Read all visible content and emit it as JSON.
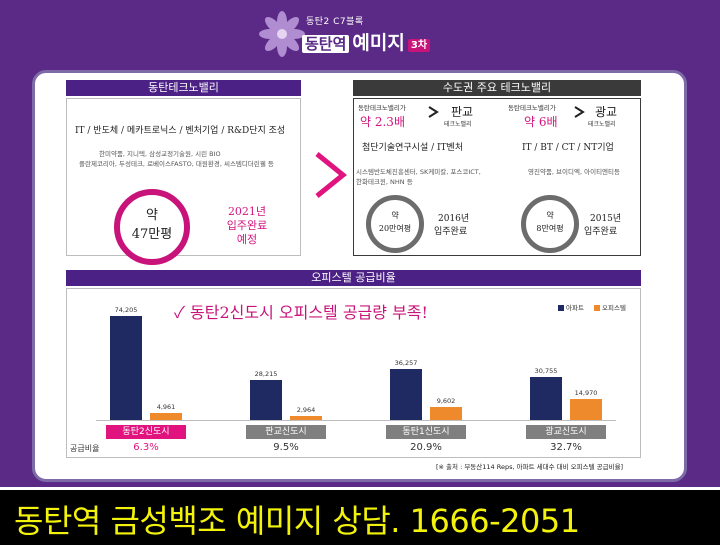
{
  "header": {
    "sub": "동탄2 C7블록",
    "station": "동탄역",
    "brand": "예미지",
    "phase": "3차"
  },
  "left": {
    "heading": "동탄테크노밸리",
    "industries": "IT / 반도체 / 메카트로닉스 / 벤처기업 / R&D단지 조성",
    "companies_line1": "한미약품, 지니텍, 삼성교정기술원, 시린 BIO",
    "companies_line2": "플란제코리아, 두성테크, 로베이스FASTO, 대원환경, 씨스템디더린웰 등",
    "ring_line1": "약",
    "ring_line2": "47만평",
    "completion_line1": "2021년",
    "completion_line2": "입주완료",
    "completion_line3": "예정"
  },
  "right": {
    "heading": "수도권 주요 테크노밸리",
    "pangyo": {
      "compare": "동탄테크노밸리가",
      "multiple": "약 2.3배",
      "name": "판교",
      "name_sub": "테크노밸리",
      "industries": "첨단기술연구시설 / IT벤처",
      "companies_line1": "시스템반도체진흥센터, SK케미칼, 포스코ICT,",
      "companies_line2": "한화테크윈, NHN 등",
      "ring_line1": "약",
      "ring_line2": "20만여평",
      "year": "2016년",
      "completed": "입주완료"
    },
    "gwanggyo": {
      "compare": "동탄테크노밸리가",
      "multiple": "약 6배",
      "name": "광교",
      "name_sub": "테크노밸리",
      "industries": "IT / BT / CT / NT기업",
      "companies": "영진약품, 브이디엑, 아이티엔티등",
      "ring_line1": "약",
      "ring_line2": "8만여평",
      "year": "2015년",
      "completed": "입주완료"
    }
  },
  "officetel": {
    "heading": "오피스텔 공급비율",
    "title": "✓ 동탄2신도시 오피스텔 공급량 부족!",
    "ratio_label": "공급비율",
    "source": "[※ 출처 : 부동산114 Reps, 아파트 세대수 대비 오피스텔 공급비율]",
    "colors": {
      "apartment": "#1f2a63",
      "officetel": "#ef8a2c"
    }
  },
  "chart_data": {
    "type": "bar",
    "title": "동탄2신도시 오피스텔 공급량 부족!",
    "categories": [
      "동탄2신도시",
      "판교신도시",
      "동탄1신도시",
      "광교신도시"
    ],
    "series": [
      {
        "name": "아파트",
        "values": [
          74205,
          28215,
          36257,
          30755
        ]
      },
      {
        "name": "오피스텔",
        "values": [
          4961,
          2964,
          9602,
          14970
        ]
      }
    ],
    "value_labels": {
      "apartment": [
        "74,205",
        "28,215",
        "36,257",
        "30,755"
      ],
      "officetel": [
        "4,961",
        "2,964",
        "9,602",
        "14,970"
      ]
    },
    "ratios": [
      "6.3%",
      "9.5%",
      "20.9%",
      "32.7%"
    ],
    "ylim": [
      0,
      80000
    ],
    "legend": "top-right",
    "grid": false
  },
  "banner": {
    "text": "동탄역 금성백조 예미지 상담.   1666-2051"
  }
}
